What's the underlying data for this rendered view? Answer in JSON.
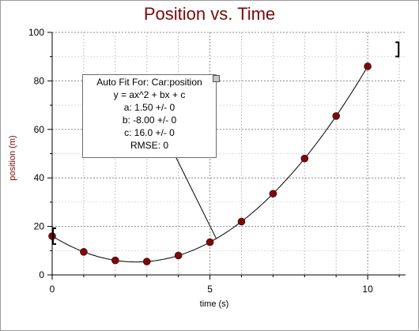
{
  "chart_data": {
    "type": "scatter",
    "title": "Position vs. Time",
    "xlabel": "time (s)",
    "ylabel": "position (m)",
    "xlim": [
      0,
      11.2
    ],
    "ylim": [
      0,
      100
    ],
    "x_ticks": [
      "0",
      "5",
      "10"
    ],
    "y_ticks": [
      "0",
      "20",
      "40",
      "60",
      "80",
      "100"
    ],
    "grid": true,
    "series": [
      {
        "x": [
          0,
          1,
          2,
          3,
          4,
          5,
          6,
          7,
          8,
          9,
          10
        ],
        "y": [
          16,
          9.5,
          6,
          5.5,
          8,
          13.5,
          22,
          33.5,
          48,
          65.5,
          86
        ],
        "color": "#7a0a0a"
      }
    ],
    "fit": {
      "a": 1.5,
      "b": -8.0,
      "c": 16.0,
      "color": "#000000"
    }
  },
  "fit_panel": {
    "lines": [
      "Auto Fit For:  Car:position",
      "y = ax^2 + bx + c",
      "a: 1.50 +/- 0",
      "b: -8.00 +/- 0",
      "c: 16.0 +/- 0",
      "RMSE: 0"
    ]
  }
}
